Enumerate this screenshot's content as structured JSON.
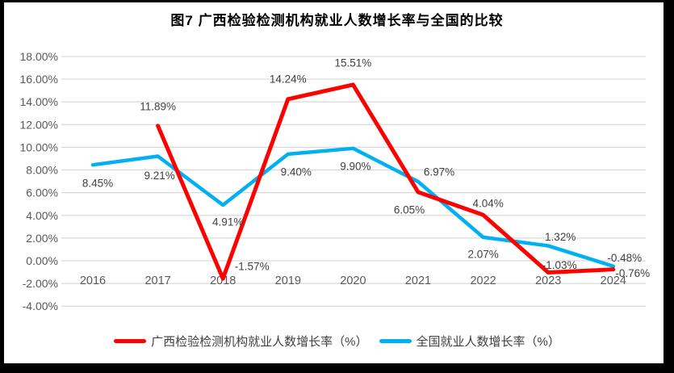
{
  "title": "图7 广西检验检测机构就业人数增长率与全国的比较",
  "chart_data": {
    "type": "line",
    "categories": [
      "2016",
      "2017",
      "2018",
      "2019",
      "2020",
      "2021",
      "2022",
      "2023",
      "2024"
    ],
    "series": [
      {
        "name": "广西检验检测机构就业人数增长率（%）",
        "color": "#FF0000",
        "values": [
          null,
          11.89,
          -1.57,
          14.24,
          15.51,
          6.05,
          4.04,
          -1.03,
          -0.76
        ],
        "label_offsets": [
          [
            0,
            0
          ],
          [
            0,
            -24
          ],
          [
            36,
            -15
          ],
          [
            0,
            -25
          ],
          [
            0,
            -27
          ],
          [
            -11,
            22
          ],
          [
            6,
            -14
          ],
          [
            14,
            -9
          ],
          [
            24,
            5
          ]
        ]
      },
      {
        "name": "全国就业人数增长率（%）",
        "color": "#00B0F0",
        "values": [
          8.45,
          9.21,
          4.91,
          9.4,
          9.9,
          6.97,
          2.07,
          1.32,
          -0.48
        ],
        "label_offsets": [
          [
            6,
            23
          ],
          [
            2,
            24
          ],
          [
            6,
            21
          ],
          [
            10,
            22
          ],
          [
            3,
            22
          ],
          [
            26,
            -12
          ],
          [
            0,
            21
          ],
          [
            15,
            -11
          ],
          [
            14,
            -10
          ]
        ]
      }
    ],
    "y_tick_labels": [
      "18.00%",
      "16.00%",
      "14.00%",
      "12.00%",
      "10.00%",
      "8.00%",
      "6.00%",
      "4.00%",
      "2.00%",
      "0.00%",
      "-2.00%",
      "-4.00%"
    ],
    "ylim": [
      -4,
      18
    ],
    "ytick_step": 2,
    "xlabel": "",
    "ylabel": "",
    "grid": true,
    "legend_position": "bottom"
  },
  "colors": {
    "title": "#000000",
    "axis_text": "#595959",
    "data_label": "#404040",
    "gridline": "#D9D9D9",
    "frame": "#000000"
  }
}
